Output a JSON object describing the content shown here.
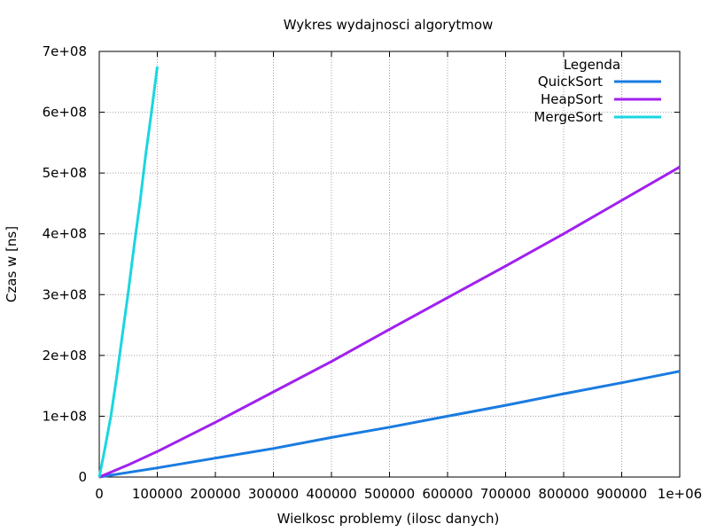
{
  "chart_data": {
    "type": "line",
    "title": "Wykres wydajnosci algorytmow",
    "xlabel": "Wielkosc problemy (ilosc danych)",
    "ylabel": "Czas w [ns]",
    "xlim": [
      0,
      1000000
    ],
    "ylim": [
      0,
      700000000
    ],
    "grid": true,
    "xticks": [
      0,
      100000,
      200000,
      300000,
      400000,
      500000,
      600000,
      700000,
      800000,
      900000,
      1000000
    ],
    "xtick_labels": [
      "0",
      "100000",
      "200000",
      "300000",
      "400000",
      "500000",
      "600000",
      "700000",
      "800000",
      "900000",
      "1e+06"
    ],
    "yticks": [
      0,
      100000000,
      200000000,
      300000000,
      400000000,
      500000000,
      600000000,
      700000000
    ],
    "ytick_labels": [
      "0",
      "1e+08",
      "2e+08",
      "3e+08",
      "4e+08",
      "5e+08",
      "6e+08",
      "7e+08"
    ],
    "legend": {
      "title": "Legenda",
      "position": "top-right"
    },
    "series": [
      {
        "name": "QuickSort",
        "color": "#1a7be0",
        "x": [
          0,
          100000,
          200000,
          300000,
          400000,
          500000,
          600000,
          700000,
          800000,
          900000,
          1000000
        ],
        "y": [
          0,
          15000000,
          31000000,
          47000000,
          65000000,
          82000000,
          100000000,
          118000000,
          137000000,
          155000000,
          174000000
        ]
      },
      {
        "name": "HeapSort",
        "color": "#a020f0",
        "x": [
          0,
          50000,
          100000,
          200000,
          300000,
          400000,
          500000,
          600000,
          700000,
          800000,
          900000,
          1000000
        ],
        "y": [
          0,
          20000000,
          42000000,
          90000000,
          140000000,
          190000000,
          243000000,
          295000000,
          347000000,
          400000000,
          455000000,
          510000000
        ]
      },
      {
        "name": "MergeSort",
        "color": "#1ad6e0",
        "x": [
          0,
          10000,
          20000,
          30000,
          40000,
          50000,
          60000,
          70000,
          80000,
          90000,
          100000
        ],
        "y": [
          0,
          48000000,
          100000000,
          165000000,
          235000000,
          305000000,
          380000000,
          450000000,
          530000000,
          600000000,
          675000000
        ]
      }
    ]
  }
}
